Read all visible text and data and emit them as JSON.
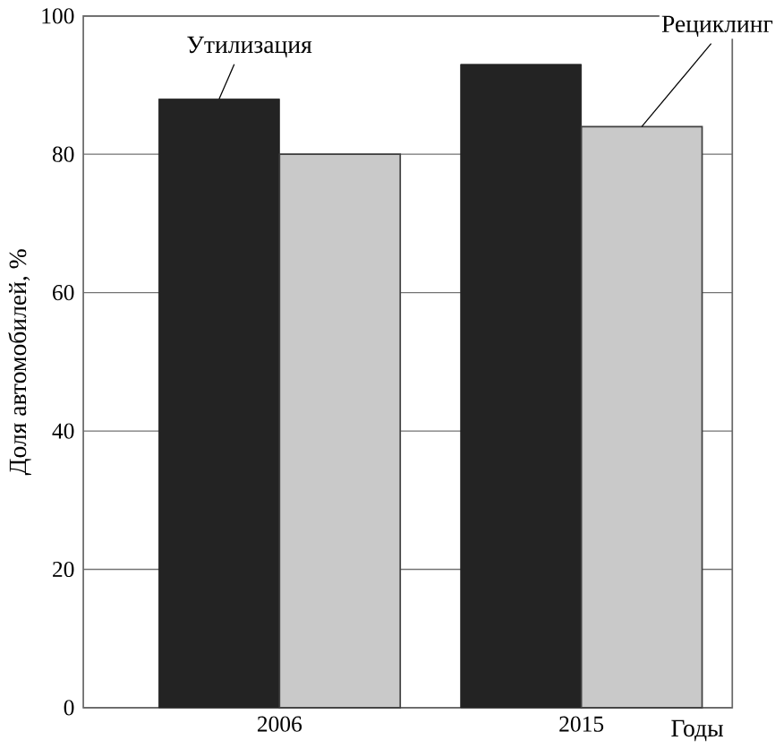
{
  "chart_data": {
    "type": "bar",
    "categories": [
      "2006",
      "2015"
    ],
    "series": [
      {
        "name": "Утилизация",
        "color": "#232323",
        "values": [
          88,
          93
        ]
      },
      {
        "name": "Рециклинг",
        "color": "#c9c9c9",
        "values": [
          80,
          84
        ]
      }
    ],
    "ylim": [
      0,
      100
    ],
    "yticks": [
      0,
      20,
      40,
      60,
      80,
      100
    ],
    "ylabel": "Доля автомобилей, %",
    "xlabel": "Годы",
    "grid": "y"
  }
}
